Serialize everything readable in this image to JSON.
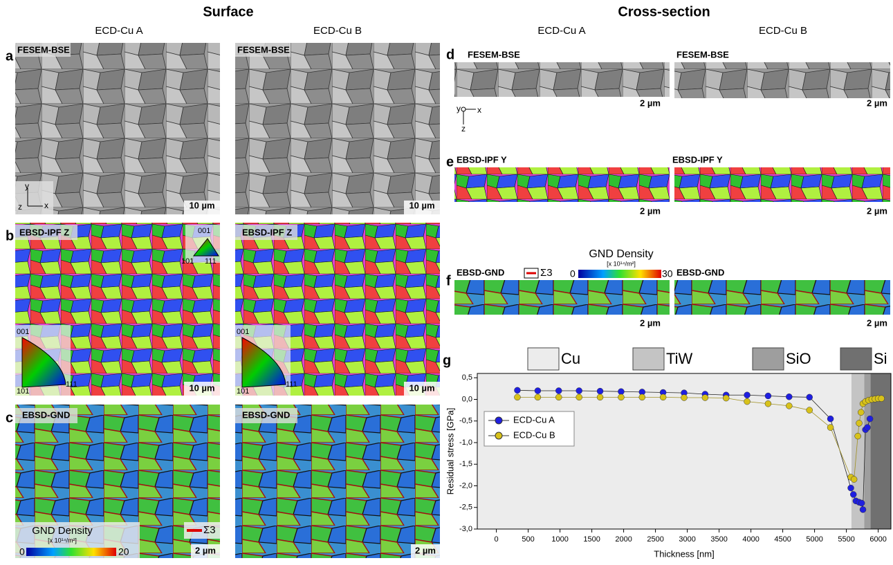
{
  "headings": {
    "surface": "Surface",
    "cross_section": "Cross-section"
  },
  "columns": [
    "ECD-Cu A",
    "ECD-Cu B",
    "ECD-Cu A",
    "ECD-Cu B"
  ],
  "panel_letters": [
    "a",
    "b",
    "c",
    "d",
    "e",
    "f",
    "g"
  ],
  "image_labels": {
    "fesem": "FESEM-BSE",
    "ipf_z": "EBSD-IPF Z",
    "gnd": "EBSD-GND",
    "ipf_y": "EBSD-IPF Y"
  },
  "scale_bars": {
    "surface": "10 µm",
    "detail": "2 µm"
  },
  "axes": {
    "x": "x",
    "y": "y",
    "z": "z"
  },
  "ipf_labels": [
    "001",
    "101",
    "111"
  ],
  "gnd_legend": {
    "title": "GND Density",
    "unit": "[x 10¹⁴/m²]",
    "min": 0,
    "max_surface": 20,
    "max_cross": 30,
    "twin": "Σ3"
  },
  "chart_data": {
    "type": "line",
    "xlabel": "Thickness [nm]",
    "ylabel": "Residual stress [GPa]",
    "xlim": [
      -300,
      6200
    ],
    "ylim": [
      -3.0,
      0.6
    ],
    "xticks": [
      0,
      500,
      1000,
      1500,
      2000,
      2500,
      3000,
      3500,
      4000,
      4500,
      5000,
      5500,
      6000
    ],
    "yticks": [
      {
        "value": 0.5,
        "label": "0,5"
      },
      {
        "value": 0.0,
        "label": "0,0"
      },
      {
        "value": -0.5,
        "label": "-0,5"
      },
      {
        "value": -1.0,
        "label": "-1,0"
      },
      {
        "value": -1.5,
        "label": "-1,5"
      },
      {
        "value": -2.0,
        "label": "-2,0"
      },
      {
        "value": -2.5,
        "label": "-2,5"
      },
      {
        "value": -3.0,
        "label": "-3,0"
      }
    ],
    "layers": [
      {
        "name": "Cu",
        "color": "#ececec",
        "range": [
          -300,
          5580
        ]
      },
      {
        "name": "TiW",
        "color": "#c4c4c4",
        "range": [
          5580,
          5780
        ]
      },
      {
        "name": "SiO",
        "color": "#9e9e9e",
        "range": [
          5780,
          5880
        ]
      },
      {
        "name": "Si",
        "color": "#707070",
        "range": [
          5880,
          6200
        ]
      }
    ],
    "series": [
      {
        "name": "ECD-Cu A",
        "color": "#1f1fe0",
        "x": [
          330,
          650,
          980,
          1300,
          1630,
          1960,
          2290,
          2620,
          2950,
          3280,
          3610,
          3940,
          4270,
          4600,
          4920,
          5250,
          5570,
          5610,
          5650,
          5700,
          5740,
          5760,
          5800,
          5830,
          5870
        ],
        "values": [
          0.21,
          0.2,
          0.2,
          0.2,
          0.19,
          0.18,
          0.17,
          0.16,
          0.15,
          0.12,
          0.1,
          0.1,
          0.08,
          0.06,
          0.05,
          -0.45,
          -2.05,
          -2.2,
          -2.35,
          -2.38,
          -2.4,
          -2.55,
          -0.7,
          -0.65,
          -0.45
        ]
      },
      {
        "name": "ECD-Cu B",
        "color": "#d8c21a",
        "x": [
          330,
          650,
          980,
          1300,
          1630,
          1960,
          2290,
          2620,
          2950,
          3280,
          3610,
          3940,
          4270,
          4600,
          4920,
          5250,
          5570,
          5620,
          5680,
          5700,
          5730,
          5760,
          5800,
          5850,
          5900,
          5950,
          6000,
          6050
        ],
        "values": [
          0.05,
          0.05,
          0.05,
          0.05,
          0.05,
          0.05,
          0.05,
          0.05,
          0.04,
          0.04,
          0.03,
          -0.05,
          -0.1,
          -0.15,
          -0.25,
          -0.65,
          -1.8,
          -1.85,
          -0.85,
          -0.55,
          -0.3,
          -0.1,
          -0.05,
          -0.02,
          0,
          0.01,
          0.02,
          0.02
        ]
      }
    ]
  }
}
